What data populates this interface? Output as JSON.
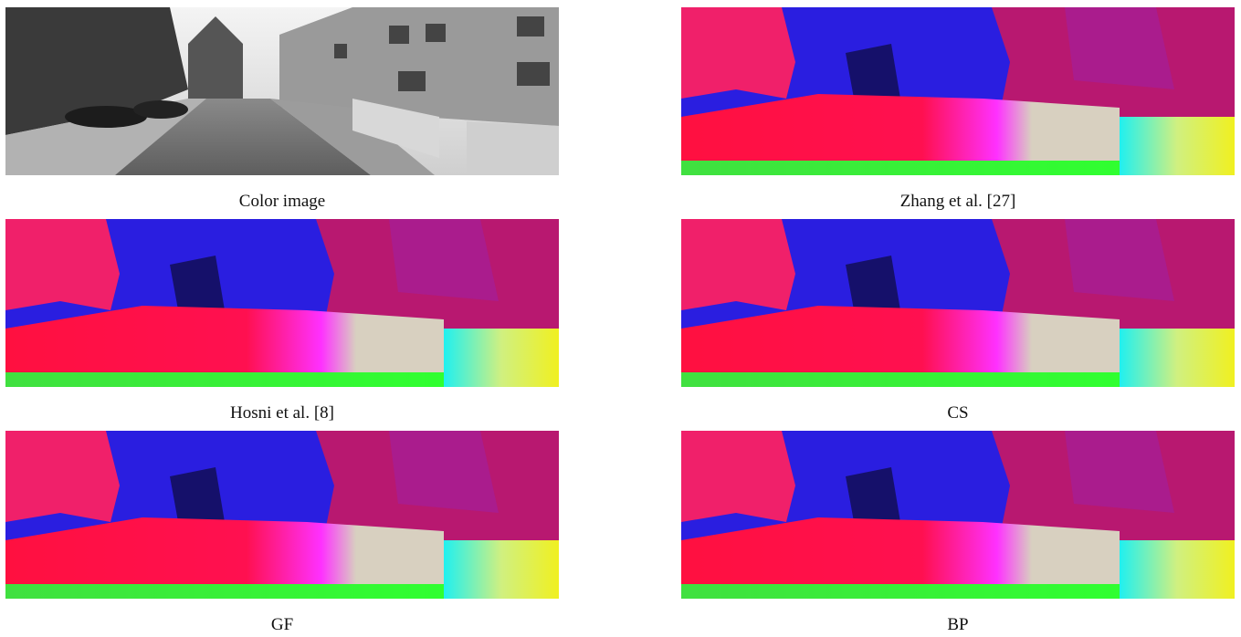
{
  "panels": [
    {
      "caption": "Color image",
      "kind": "color"
    },
    {
      "caption": "Zhang et al. [27]",
      "kind": "disparity"
    },
    {
      "caption": "Hosni et al. [8]",
      "kind": "disparity"
    },
    {
      "caption": "CS",
      "kind": "disparity"
    },
    {
      "caption": "GF",
      "kind": "disparity"
    },
    {
      "caption": "BP",
      "kind": "disparity"
    }
  ]
}
